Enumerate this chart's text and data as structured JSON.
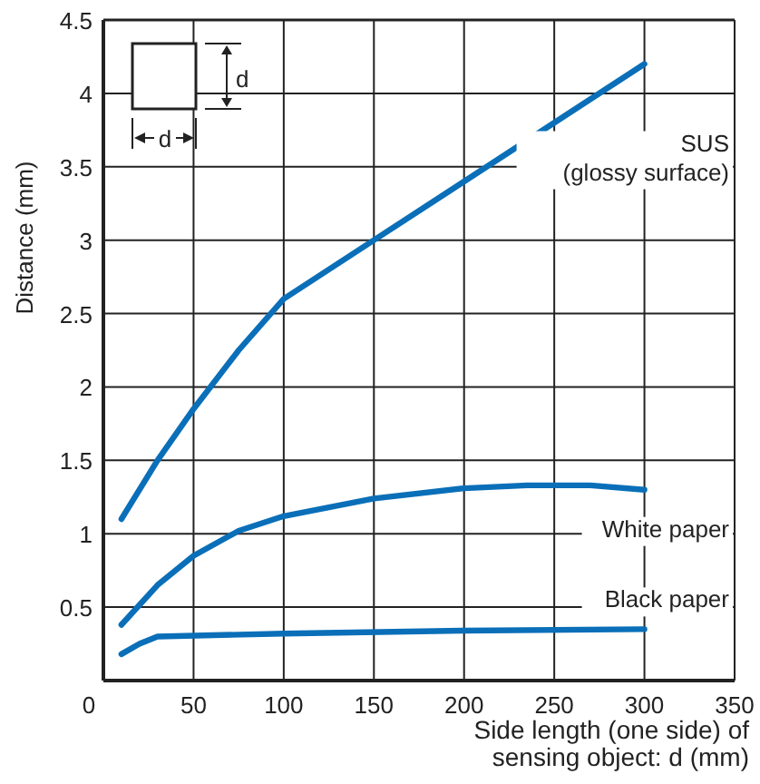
{
  "chart_data": {
    "type": "line",
    "xlabel": "Side length (one side) of\nsensing object: d (mm)",
    "ylabel": "Distance (mm)",
    "xlim": [
      0,
      350
    ],
    "ylim": [
      0,
      4.5
    ],
    "xticks": [
      0,
      50,
      100,
      150,
      200,
      250,
      300,
      350
    ],
    "yticks": [
      {
        "value": 0,
        "label": null
      },
      0.5,
      1,
      1.5,
      2,
      2.5,
      3,
      3.5,
      4,
      4.5
    ],
    "grid": true,
    "marker": "none",
    "line_style": "solid",
    "annotations": [
      "d",
      "d"
    ],
    "series": [
      {
        "name": "SUS\n(glossy surface)",
        "color": "#0a6fb8",
        "x": [
          10,
          30,
          50,
          75,
          100,
          150,
          200,
          250,
          300
        ],
        "values": [
          1.1,
          1.5,
          1.85,
          2.25,
          2.6,
          3.0,
          3.4,
          3.8,
          4.2
        ]
      },
      {
        "name": "White paper",
        "color": "#0a6fb8",
        "x": [
          10,
          30,
          50,
          75,
          100,
          150,
          200,
          235,
          270,
          300
        ],
        "values": [
          0.38,
          0.65,
          0.85,
          1.02,
          1.12,
          1.24,
          1.31,
          1.33,
          1.33,
          1.3
        ]
      },
      {
        "name": "Black paper",
        "color": "#0a6fb8",
        "x": [
          10,
          20,
          30,
          100,
          200,
          300
        ],
        "values": [
          0.18,
          0.25,
          0.3,
          0.32,
          0.34,
          0.35
        ]
      }
    ]
  }
}
